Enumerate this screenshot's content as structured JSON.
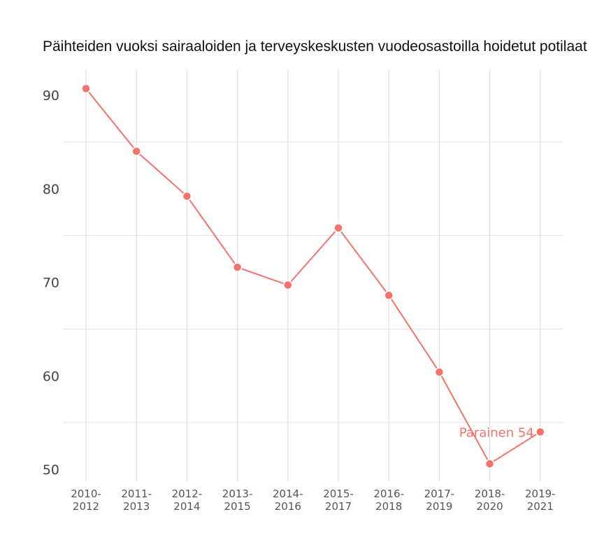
{
  "title": "Päihteiden vuoksi sairaaloiden ja terveyskeskusten vuodeosastoilla hoidetut potilaat",
  "chart_data": {
    "type": "line",
    "title": "Päihteiden vuoksi sairaaloiden ja terveyskeskusten vuodeosastoilla hoidetut potilaat",
    "xlabel": "",
    "ylabel": "",
    "categories": [
      "2010-2012",
      "2011-2013",
      "2012-2014",
      "2013-2015",
      "2014-2016",
      "2015-2017",
      "2016-2018",
      "2017-2019",
      "2018-2020",
      "2019-2021"
    ],
    "series": [
      {
        "name": "Parainen",
        "color": "#f4736b",
        "values": [
          90.7,
          84.0,
          79.2,
          71.6,
          69.7,
          75.8,
          68.6,
          60.4,
          50.6,
          54.0
        ]
      }
    ],
    "yticks": [
      50,
      60,
      70,
      80,
      90
    ],
    "ylim": [
      49.5,
      92.8
    ],
    "grid": true,
    "legend": "none",
    "annotation": {
      "text": "Parainen 54",
      "category": "2019-2021",
      "value": 54
    }
  }
}
